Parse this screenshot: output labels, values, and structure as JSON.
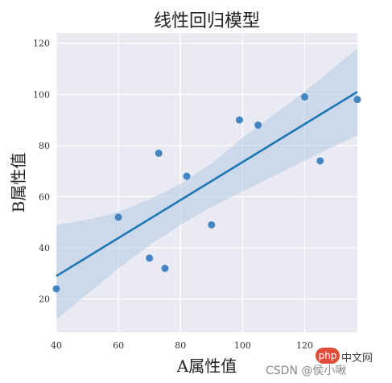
{
  "chart_data": {
    "type": "scatter",
    "title": "线性回归模型",
    "xlabel": "A属性值",
    "ylabel": "B属性值",
    "xlim": [
      40,
      137
    ],
    "ylim": [
      7,
      124
    ],
    "xticks": [
      40,
      60,
      80,
      100,
      120
    ],
    "yticks": [
      20,
      40,
      60,
      80,
      100,
      120
    ],
    "grid": true,
    "points": [
      {
        "x": 40,
        "y": 24
      },
      {
        "x": 60,
        "y": 52
      },
      {
        "x": 70,
        "y": 36
      },
      {
        "x": 73,
        "y": 77
      },
      {
        "x": 75,
        "y": 32
      },
      {
        "x": 82,
        "y": 68
      },
      {
        "x": 90,
        "y": 49
      },
      {
        "x": 99,
        "y": 90
      },
      {
        "x": 105,
        "y": 88
      },
      {
        "x": 120,
        "y": 99
      },
      {
        "x": 125,
        "y": 74
      },
      {
        "x": 137,
        "y": 98
      }
    ],
    "regression": {
      "x": [
        40,
        137
      ],
      "y": [
        29,
        101
      ]
    },
    "confidence_band": {
      "x": [
        40,
        50,
        60,
        70,
        80,
        90,
        100,
        110,
        120,
        130,
        137
      ],
      "upper": [
        49,
        51,
        54,
        59,
        65,
        73,
        83,
        92,
        101,
        111,
        118
      ],
      "lower": [
        12,
        22,
        32,
        41,
        49,
        56,
        62,
        68,
        74,
        80,
        84
      ]
    },
    "colors": {
      "point": "#3b7fbf",
      "line": "#1f77b4",
      "band": "#b9cde4",
      "background": "#e9eaf2"
    }
  },
  "watermark": {
    "badge": "php",
    "cn": "中文网",
    "text": "CSDN @侯小啾"
  }
}
